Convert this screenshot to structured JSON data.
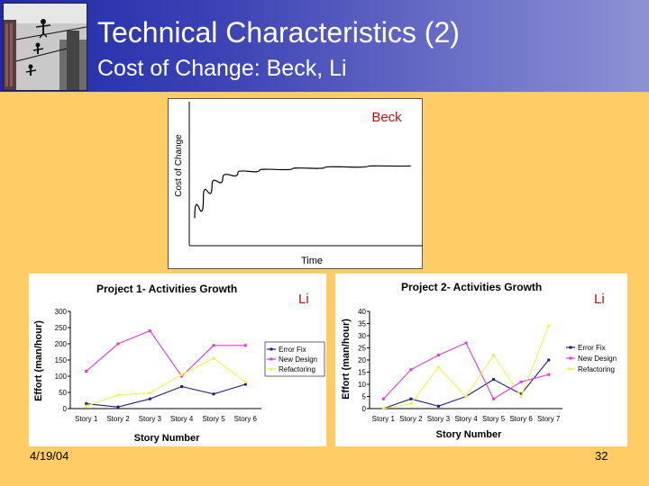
{
  "slide": {
    "title": "Technical Characteristics (2)",
    "subtitle": "Cost of Change: Beck, Li",
    "date": "4/19/04",
    "page_number": "32",
    "colors": {
      "background": "#FFCC66",
      "header_start": "#1f2aa8",
      "header_end": "#8e92d4",
      "title": "#ffffff"
    }
  },
  "chart_data": [
    {
      "type": "line",
      "title": "Beck",
      "xlabel": "Time",
      "ylabel": "Cost of Change",
      "series": [
        {
          "name": "Cost of Change",
          "x": [
            0,
            0.04,
            0.08,
            0.13,
            0.2,
            0.3,
            0.45,
            0.6,
            0.8,
            1.0
          ],
          "values": [
            0.12,
            0.28,
            0.38,
            0.44,
            0.48,
            0.5,
            0.51,
            0.52,
            0.53,
            0.535
          ]
        }
      ],
      "xlim": [
        0,
        1
      ],
      "ylim": [
        0,
        1
      ],
      "color": "#000000"
    },
    {
      "type": "line",
      "title": "Project 1- Activities Growth",
      "tag": "Li",
      "xlabel": "Story Number",
      "ylabel": "Effort (man/hour)",
      "categories": [
        "Story 1",
        "Story 2",
        "Story 3",
        "Story 4",
        "Story 5",
        "Story 6"
      ],
      "ylim": [
        0,
        300
      ],
      "yticks": [
        0,
        50,
        100,
        150,
        200,
        250,
        300
      ],
      "series": [
        {
          "name": "Error Fix",
          "color": "#1f1f7a",
          "values": [
            15,
            5,
            30,
            68,
            45,
            75
          ]
        },
        {
          "name": "New Design",
          "color": "#e03ad6",
          "values": [
            115,
            200,
            240,
            100,
            195,
            195
          ]
        },
        {
          "name": "Refactoring",
          "color": "#f5ef4a",
          "values": [
            8,
            42,
            48,
            105,
            155,
            82
          ]
        }
      ]
    },
    {
      "type": "line",
      "title": "Project 2- Activities Growth",
      "tag": "Li",
      "xlabel": "Story Number",
      "ylabel": "Effort  (man/hour)",
      "categories": [
        "Story 1",
        "Story 2",
        "Story 3",
        "Story 4",
        "Story 5",
        "Story 6",
        "Story 7"
      ],
      "ylim": [
        0,
        40
      ],
      "yticks": [
        0,
        5,
        10,
        15,
        20,
        25,
        30,
        35,
        40
      ],
      "series": [
        {
          "name": "Error Fix",
          "color": "#1f1f7a",
          "values": [
            0,
            4,
            1,
            5,
            12,
            6,
            20
          ]
        },
        {
          "name": "New Design",
          "color": "#e03ad6",
          "values": [
            4,
            16,
            22,
            27,
            4,
            11,
            14
          ]
        },
        {
          "name": "Refactoring",
          "color": "#f5ef4a",
          "values": [
            0,
            2,
            17,
            5,
            22,
            5,
            34
          ]
        }
      ]
    }
  ]
}
